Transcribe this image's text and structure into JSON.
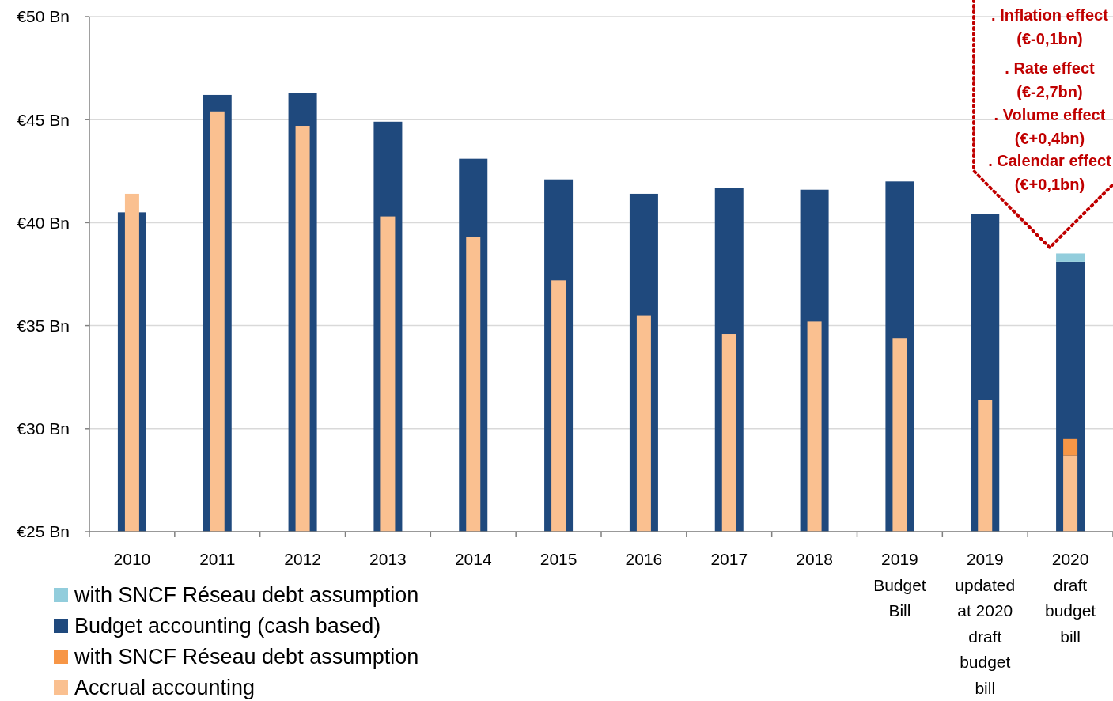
{
  "chart_data": {
    "type": "bar",
    "categories": [
      "2010",
      "2011",
      "2012",
      "2013",
      "2014",
      "2015",
      "2016",
      "2017",
      "2018",
      "2019 Budget Bill",
      "2019 updated at 2020 draft budget bill",
      "2020 draft budget bill"
    ],
    "series": [
      {
        "name": "with SNCF Réseau debt assumption",
        "color": "#92cddc",
        "values": [
          null,
          null,
          null,
          null,
          null,
          null,
          null,
          null,
          null,
          null,
          null,
          0.4
        ],
        "base": [
          null,
          null,
          null,
          null,
          null,
          null,
          null,
          null,
          null,
          null,
          null,
          38.1
        ]
      },
      {
        "name": "Budget accounting (cash based)",
        "color": "#1f497d",
        "values": [
          40.5,
          46.2,
          46.3,
          44.9,
          43.1,
          42.1,
          41.4,
          41.7,
          41.6,
          42.0,
          40.4,
          38.1
        ]
      },
      {
        "name": "with SNCF Réseau debt assumption",
        "color": "#f79646",
        "values": [
          null,
          null,
          null,
          null,
          null,
          null,
          null,
          null,
          null,
          null,
          null,
          0.8
        ],
        "base": [
          null,
          null,
          null,
          null,
          null,
          null,
          null,
          null,
          null,
          null,
          null,
          28.7
        ]
      },
      {
        "name": "Accrual accounting",
        "color": "#fac090",
        "values": [
          41.4,
          45.4,
          44.7,
          40.3,
          39.3,
          37.2,
          35.5,
          34.6,
          35.2,
          34.4,
          31.4,
          28.7
        ]
      }
    ],
    "ylim": [
      25,
      50
    ],
    "yticks": [
      {
        "value": 25,
        "label": "€25 Bn"
      },
      {
        "value": 30,
        "label": "€30 Bn"
      },
      {
        "value": 35,
        "label": "€35 Bn"
      },
      {
        "value": 40,
        "label": "€40 Bn"
      },
      {
        "value": 45,
        "label": "€45 Bn"
      },
      {
        "value": 50,
        "label": "€50 Bn"
      }
    ],
    "grid": "y",
    "legend": "bottom left",
    "annotations": [
      ". Inflation effect\n(€-0,1bn)",
      ". Rate effect\n(€-2,7bn)",
      ". Volume effect\n(€+0,4bn)",
      ". Calendar effect\n(€+0,1bn)"
    ]
  }
}
